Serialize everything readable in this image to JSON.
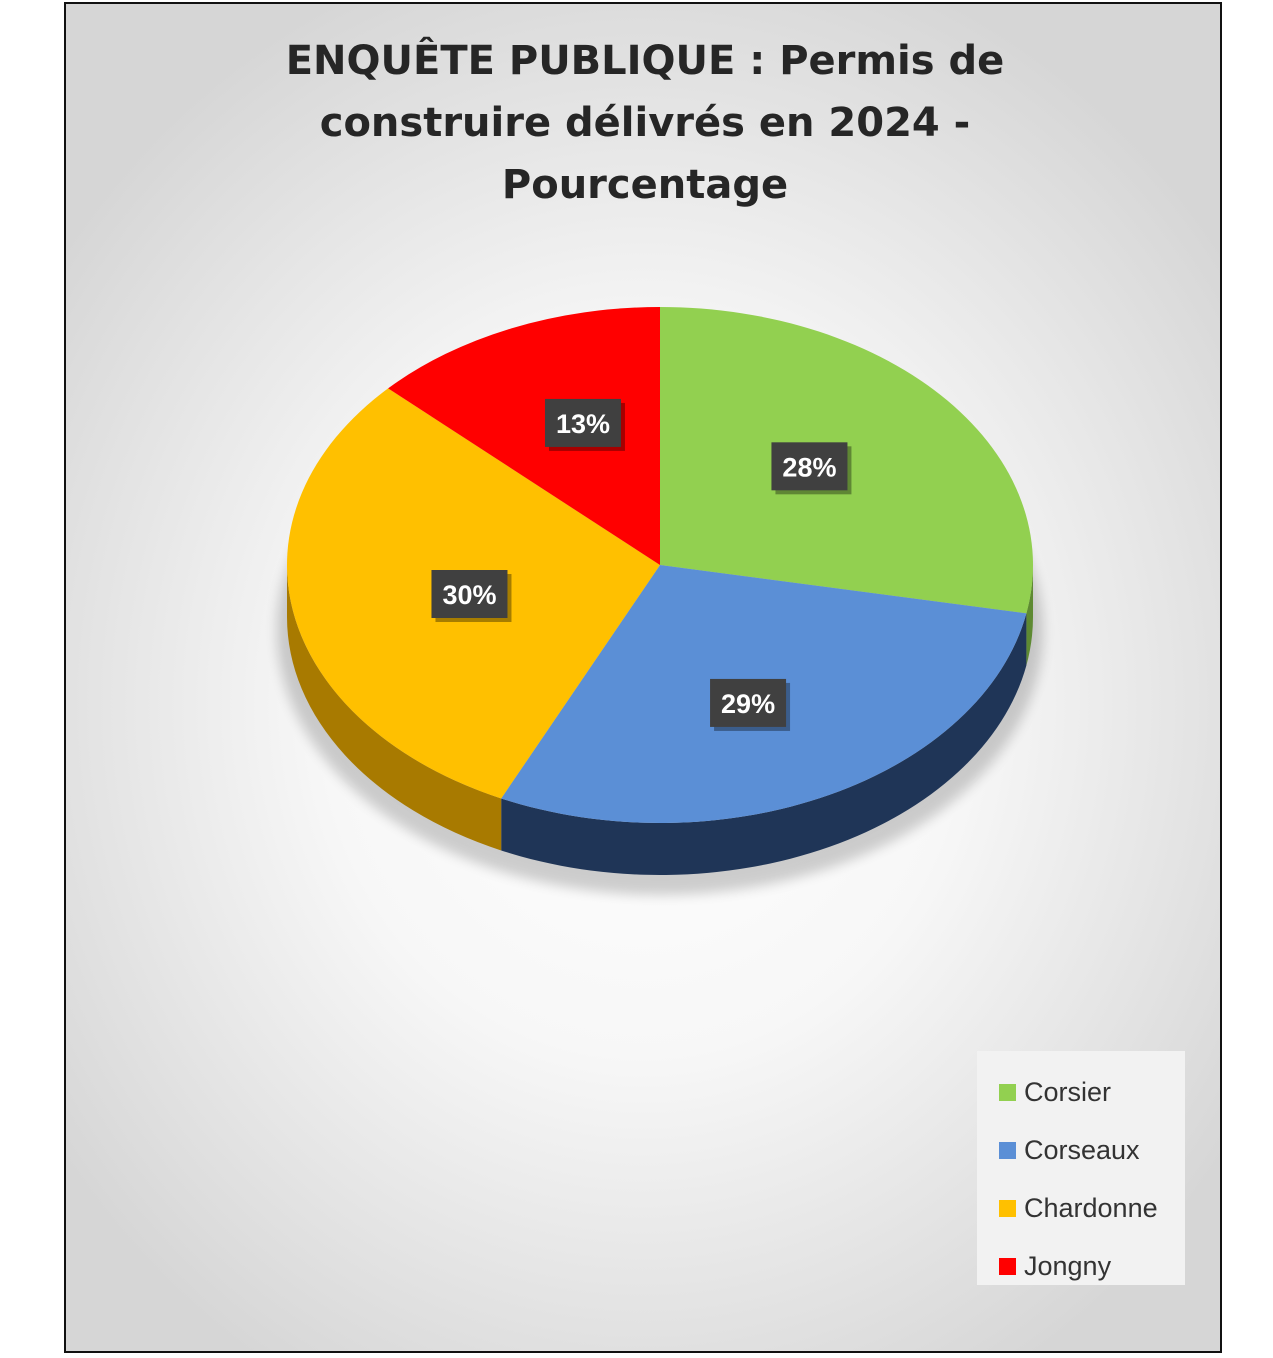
{
  "chart_data": {
    "type": "pie",
    "title": "ENQUÊTE PUBLIQUE : Permis de construire délivrés en 2024 - Pourcentage",
    "categories": [
      "Corsier",
      "Corseaux",
      "Chardonne",
      "Jongny"
    ],
    "values": [
      28,
      29,
      30,
      13
    ],
    "value_labels": [
      "28%",
      "29%",
      "30%",
      "13%"
    ],
    "colors": [
      "#92d050",
      "#5b8fd6",
      "#ffc000",
      "#ff0000"
    ],
    "side_colors": [
      "#5e8a32",
      "#1f3557",
      "#a87a00",
      "#a80000"
    ],
    "start_angle_deg": 0,
    "direction": "clockwise",
    "style": "3d",
    "legend_position": "bottom-right"
  },
  "legend": {
    "items": [
      {
        "label": "Corsier",
        "color": "#92d050"
      },
      {
        "label": "Corseaux",
        "color": "#5b8fd6"
      },
      {
        "label": "Chardonne",
        "color": "#ffc000"
      },
      {
        "label": "Jongny",
        "color": "#ff0000"
      }
    ]
  }
}
